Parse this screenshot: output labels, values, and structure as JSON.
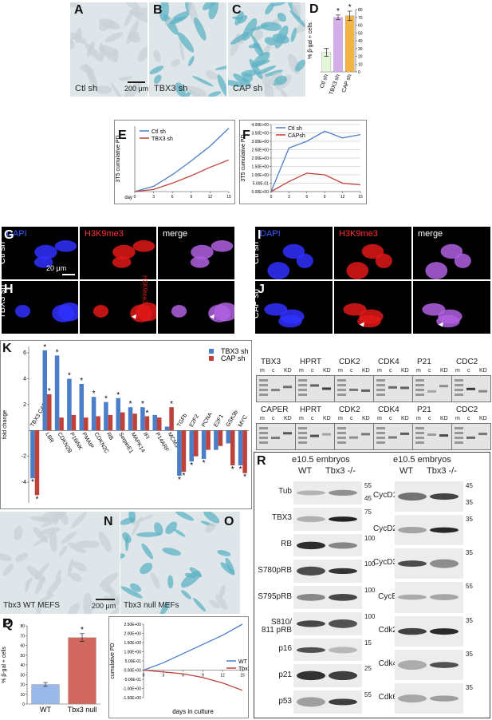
{
  "figure": {
    "top_micrographs": {
      "labels": [
        "A",
        "B",
        "C"
      ],
      "captions": [
        "Ctl sh",
        "TBX3 sh",
        "CAP sh"
      ],
      "scale_bar": "200 μm"
    },
    "if_left": {
      "labels": [
        "G",
        "H"
      ],
      "channels": [
        "DAPI",
        "H3K9me3",
        "merge"
      ],
      "rows": [
        "Ctl sh",
        "TBX3 sh"
      ],
      "scale_bar": "20 μm",
      "side_text": "H3K9me3"
    },
    "if_right": {
      "labels": [
        "I",
        "J"
      ],
      "channels": [
        "DAPI",
        "H3K9me3",
        "merge"
      ],
      "rows": [
        "Ctl sh",
        "CAP sh"
      ]
    },
    "gels": [
      {
        "label": "L",
        "genes": [
          "TBX3",
          "HPRT",
          "CDK2",
          "CDK4",
          "P21",
          "CDC2"
        ],
        "lanes": [
          "m",
          "c",
          "KD"
        ]
      },
      {
        "label": "M",
        "genes": [
          "CAPER",
          "HPRT",
          "CDK2",
          "CDK4",
          "P21",
          "CDC2"
        ],
        "lanes": [
          "m",
          "c",
          "KD"
        ]
      }
    ],
    "mef_micrographs": {
      "labels": [
        "N",
        "O"
      ],
      "captions": [
        "Tbx3 WT MEFS",
        "Tbx3 null MEFs"
      ],
      "scale_bar": "200 μm"
    },
    "blots": {
      "label": "R",
      "columns": [
        {
          "title": "e10.5 embryos",
          "lanes": [
            "WT",
            "Tbx3 -/-"
          ],
          "rows": [
            {
              "name": "Tub",
              "markers": [
                "55",
                "45"
              ]
            },
            {
              "name": "TBX3",
              "markers": [
                "75"
              ]
            },
            {
              "name": "RB",
              "markers": [
                "100"
              ]
            },
            {
              "name": "S780pRB",
              "markers": [
                "100"
              ]
            },
            {
              "name": "S795pRB",
              "markers": [
                "100"
              ]
            },
            {
              "name": "S810/ 811 pRB",
              "markers": [
                "100"
              ]
            },
            {
              "name": "p16",
              "markers": [
                "15"
              ]
            },
            {
              "name": "p21",
              "markers": [
                "25"
              ]
            },
            {
              "name": "p53",
              "markers": [
                "55"
              ]
            }
          ]
        },
        {
          "title": "e10.5 embryos",
          "lanes": [
            "WT",
            "Tbx3 -/-"
          ],
          "rows": [
            {
              "name": "CycD1",
              "markers": [
                "45",
                "35"
              ]
            },
            {
              "name": "CycD2",
              "markers": [
                "35"
              ]
            },
            {
              "name": "CycD3",
              "markers": [
                "35"
              ]
            },
            {
              "name": "CycE",
              "markers": [
                "55"
              ]
            },
            {
              "name": "Cdk2",
              "markers": [
                "35"
              ]
            },
            {
              "name": "Cdk4",
              "markers": [
                "35"
              ]
            },
            {
              "name": "Cdk6",
              "markers": [
                "35"
              ]
            }
          ]
        }
      ]
    }
  },
  "chart_data": [
    {
      "type": "bar",
      "label": "D",
      "ylabel": "% β-gal + cells",
      "categories": [
        "Ctl sh",
        "TBX3 sh",
        "CAP sh"
      ],
      "values": [
        25,
        70,
        72
      ],
      "errors": [
        5,
        3,
        6
      ],
      "annotations": [
        null,
        "*",
        "*"
      ],
      "colors": [
        "#e6f6d8",
        "#d3aee8",
        "#f2b445"
      ],
      "ylim": [
        0,
        80
      ],
      "yticks": [
        0,
        10,
        20,
        30,
        40,
        50,
        60,
        70,
        80
      ]
    },
    {
      "type": "line",
      "label": "E",
      "ylabel": "3T5 cumulative PD",
      "xlabel": "day",
      "x": [
        0,
        3,
        6,
        9,
        12,
        15
      ],
      "xlim": [
        0,
        15
      ],
      "xticks": [
        0,
        3,
        6,
        9,
        12,
        15
      ],
      "ylim": [
        0,
        6.2
      ],
      "series": [
        {
          "name": "Ctl sh",
          "color": "#4a7ec8",
          "values": [
            0,
            0.5,
            1.6,
            2.9,
            4.3,
            6
          ]
        },
        {
          "name": "TBX3 sh",
          "color": "#c0403a",
          "values": [
            0,
            0.2,
            0.8,
            1.5,
            2.3,
            3
          ]
        }
      ]
    },
    {
      "type": "line",
      "label": "F",
      "ylabel": "3T5 cumulative PD",
      "x": [
        0,
        3,
        6,
        9,
        12,
        15
      ],
      "xlim": [
        0,
        15
      ],
      "xticks": [
        0,
        3,
        6,
        9,
        12,
        15
      ],
      "ylim": [
        0,
        4
      ],
      "grid": true,
      "yticks": [
        {
          "value": 0,
          "label": "0.00E+00"
        },
        {
          "value": 0.5,
          "label": "5.00E-01"
        },
        {
          "value": 1,
          "label": "1.00E+00"
        },
        {
          "value": 1.5,
          "label": "1.50E+00"
        },
        {
          "value": 2,
          "label": "2.00E+00"
        },
        {
          "value": 2.5,
          "label": "2.50E+00"
        },
        {
          "value": 3,
          "label": "3.00E+00"
        },
        {
          "value": 3.5,
          "label": "3.50E+00"
        },
        {
          "value": 4,
          "label": "4.00E+00"
        }
      ],
      "series": [
        {
          "name": "Ctl sh",
          "color": "#4a7ec8",
          "values": [
            0,
            2.6,
            3.0,
            3.6,
            3.2,
            3.4
          ]
        },
        {
          "name": "CAPsh",
          "color": "#c0403a",
          "values": [
            0,
            0.6,
            1.1,
            1.0,
            0.5,
            0.4
          ]
        }
      ]
    },
    {
      "type": "grouped_bar",
      "label": "K",
      "ylabel": "fold change",
      "categories": [
        "TBX3 CAPER",
        "LBR",
        "CDKN2B",
        "P16INK",
        "PMAIP",
        "CDKN2C",
        "RB",
        "SerpinE1",
        "MAPK14",
        "IFI",
        "P14ARF",
        "MCM3",
        "TGFb",
        "E2F2",
        "PCNA",
        "E2F1",
        "GSK3b",
        "MYC"
      ],
      "ylim": [
        -5.6,
        6.5
      ],
      "yticks": [
        -4,
        -2,
        2,
        4,
        6
      ],
      "series": [
        {
          "name": "TBX3 sh",
          "color": "#4a7ec8",
          "values": [
            -3.7,
            6.2,
            5.8,
            4.0,
            3.6,
            2.6,
            2.2,
            2.5,
            1.8,
            1.8,
            1.2,
            0.3,
            -3.5,
            -2.4,
            -2.2,
            -1.5,
            -1.0,
            -2.7
          ],
          "markers": [
            "*",
            "*",
            "*",
            "*",
            "*",
            "*",
            "*",
            "*",
            "*",
            "*",
            null,
            null,
            "*",
            "*",
            "*",
            null,
            null,
            "*"
          ]
        },
        {
          "name": "CAP sh",
          "color": "#c0403a",
          "values": [
            -5.0,
            2.8,
            1.0,
            1.2,
            1.0,
            1.1,
            1.2,
            1.4,
            1.3,
            1.1,
            1.0,
            1.8,
            -3.2,
            -2.0,
            -1.5,
            -1.2,
            -2.7,
            -3.3
          ],
          "markers": [
            "*",
            "*",
            null,
            null,
            null,
            null,
            null,
            null,
            null,
            "*",
            null,
            "*",
            "*",
            null,
            null,
            null,
            "*",
            "*"
          ]
        }
      ]
    },
    {
      "type": "bar",
      "label": "P",
      "ylabel": "% β-gal + cells",
      "categories": [
        "WT",
        "Tbx3 null"
      ],
      "values": [
        20,
        68
      ],
      "errors": [
        2,
        4
      ],
      "annotations": [
        null,
        "*"
      ],
      "colors": [
        "#9ab8e8",
        "#d06860"
      ],
      "ylim": [
        0,
        80
      ],
      "yticks": [
        0,
        10,
        20,
        30,
        40,
        50,
        60,
        70,
        80
      ]
    },
    {
      "type": "line",
      "label": "Q",
      "ylabel": "cumulative PD",
      "xlabel": "days in culture",
      "x": [
        0,
        3,
        6,
        9,
        12,
        15
      ],
      "xlim": [
        0,
        15
      ],
      "xticks": [
        0,
        3,
        6,
        9,
        12,
        15
      ],
      "ylim": [
        -1.5,
        2.5
      ],
      "yticks": [
        {
          "value": -1.5,
          "label": "-1.50E+00"
        },
        {
          "value": -1,
          "label": "-1.00E+00"
        },
        {
          "value": -0.5,
          "label": "-5.00E-01"
        },
        {
          "value": 0,
          "label": "0.00E+00"
        },
        {
          "value": 0.5,
          "label": "5.00E-01"
        },
        {
          "value": 1,
          "label": "1.00E+00"
        },
        {
          "value": 1.5,
          "label": "1.50E+00"
        },
        {
          "value": 2,
          "label": "2.00E+00"
        },
        {
          "value": 2.5,
          "label": "2.50E+00"
        }
      ],
      "series": [
        {
          "name": "WT",
          "color": "#4a7ec8",
          "values": [
            0,
            0.4,
            0.9,
            1.4,
            1.9,
            2.5
          ]
        },
        {
          "name": "Tbx3 null",
          "color": "#c0403a",
          "values": [
            0,
            -0.1,
            -0.2,
            -0.4,
            -0.7,
            -1.1
          ]
        }
      ]
    }
  ]
}
